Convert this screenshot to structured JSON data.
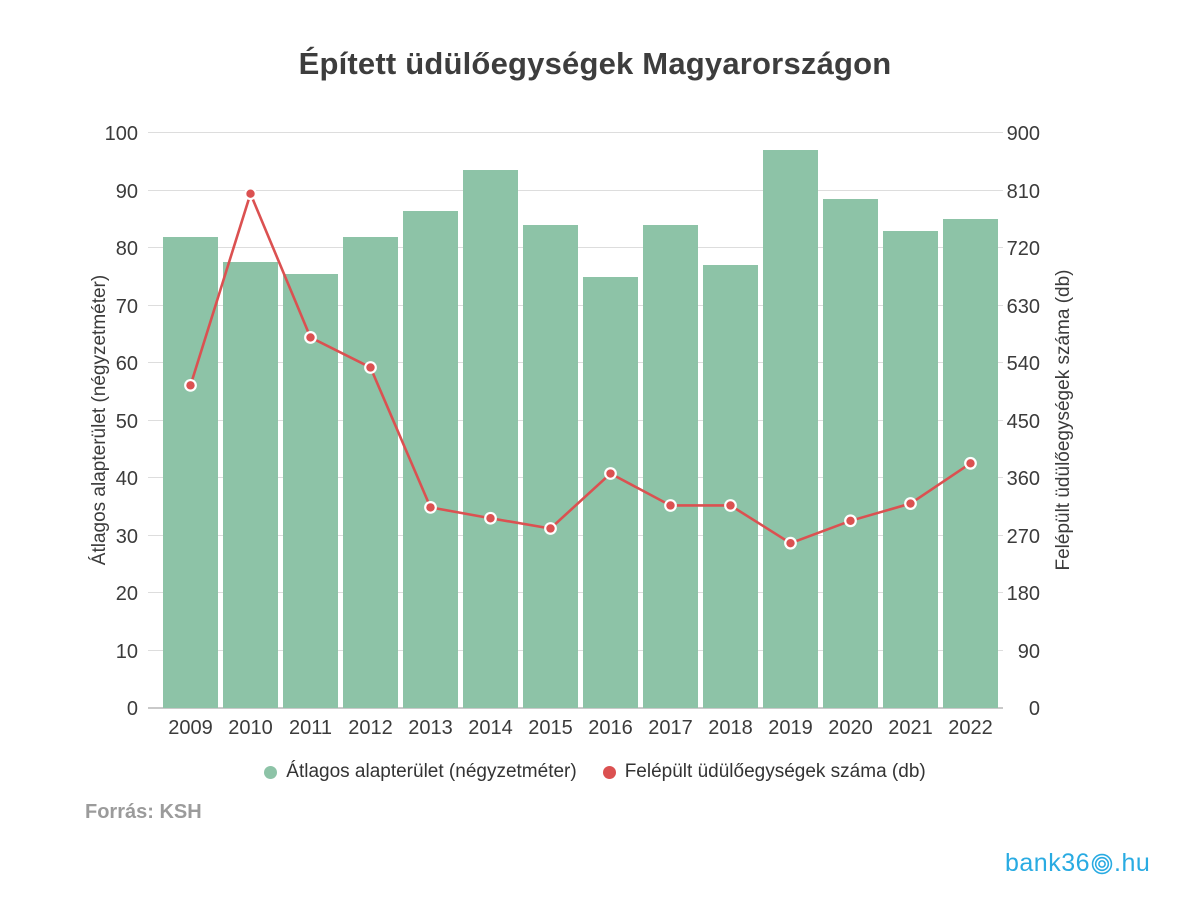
{
  "title": "Épített üdülőegységek Magyarországon",
  "source": "Forrás: KSH",
  "logo": {
    "prefix": "bank36",
    "suffix": ".hu",
    "color": "#29abe2"
  },
  "colors": {
    "bar": "#8dc3a7",
    "line": "#db5151",
    "marker_stroke": "#ffffff",
    "grid": "#dddddd",
    "axis_line": "#c9c9c9",
    "text_dark": "#3b3b3b",
    "title_text": "#3d3d3d",
    "source_text": "#9b9b9b"
  },
  "legend": [
    {
      "label": "Átlagos alapterület (négyzetméter)",
      "marker": "green-dot"
    },
    {
      "label": "Felépült üdülőegységek száma (db)",
      "marker": "red-dot"
    }
  ],
  "chart_data": {
    "type": "bar",
    "subtype": "bar+line combo, dual axis",
    "title": "Épített üdülőegységek Magyarországon",
    "categories": [
      2009,
      2010,
      2011,
      2012,
      2013,
      2014,
      2015,
      2016,
      2017,
      2018,
      2019,
      2020,
      2021,
      2022
    ],
    "series": [
      {
        "name": "Átlagos alapterület (négyzetméter)",
        "type": "bar",
        "axis": "left",
        "color": "#8dc3a7",
        "values": [
          82,
          77.5,
          75.5,
          82,
          86.5,
          93.5,
          84,
          75,
          84,
          77,
          97,
          88.5,
          83,
          85
        ]
      },
      {
        "name": "Felépült üdülőegységek száma (db)",
        "type": "line",
        "axis": "right",
        "color": "#db5151",
        "values": [
          505,
          805,
          580,
          533,
          314,
          297,
          281,
          367,
          317,
          317,
          258,
          293,
          320,
          383
        ]
      }
    ],
    "left_axis": {
      "label": "Átlagos alapterület (négyzetméter)",
      "min": 0,
      "max": 100,
      "tick_step": 10
    },
    "right_axis": {
      "label": "Felépült üdülőegységek száma (db)",
      "min": 0,
      "max": 900,
      "tick_step": 90
    },
    "grid": true,
    "legend_position": "bottom-center"
  }
}
